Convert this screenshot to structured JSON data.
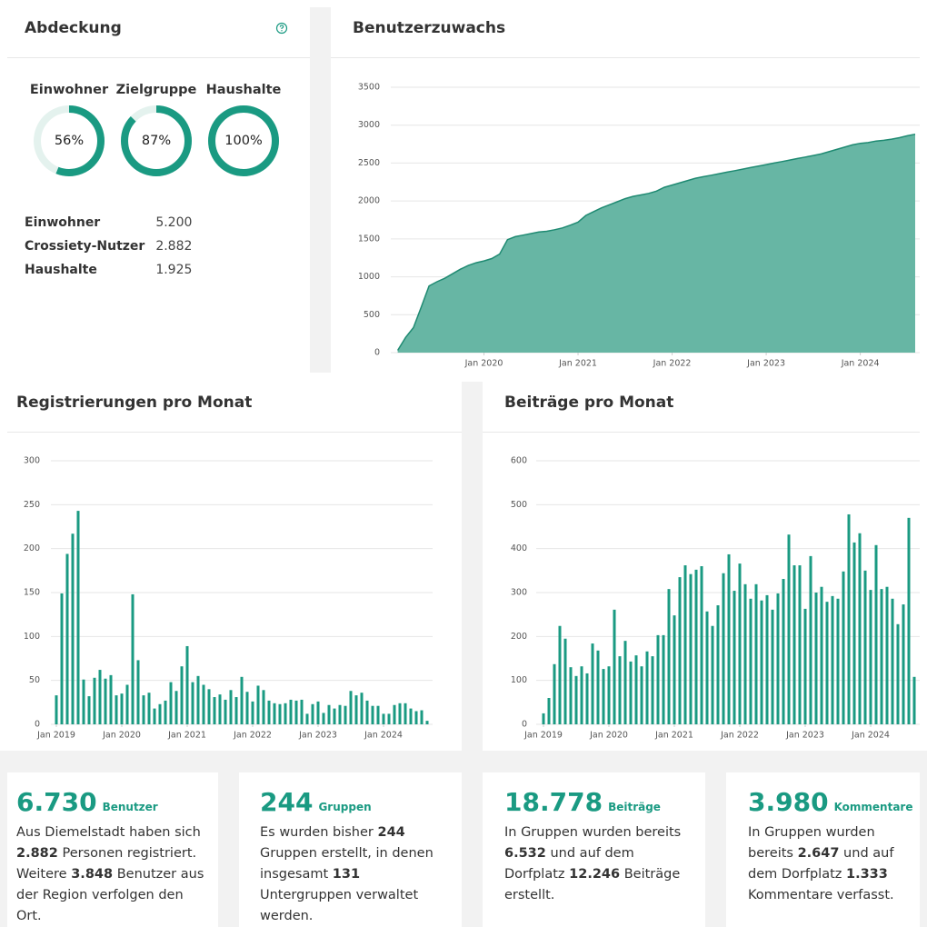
{
  "chart_data": [
    {
      "type": "donut",
      "title": "Abdeckung",
      "categories": [
        "Einwohner",
        "Zielgruppe",
        "Haushalte"
      ],
      "values": [
        56,
        87,
        100
      ],
      "value_labels": [
        "56%",
        "87%",
        "100%"
      ],
      "color": "#1a9a82",
      "track_color": "#e4f2ee"
    },
    {
      "type": "area",
      "title": "Benutzerzuwachs",
      "color": "#1f8a72",
      "fill": "#67b6a4",
      "x": [
        "2019-02",
        "2019-03",
        "2019-04",
        "2019-05",
        "2019-06",
        "2019-07",
        "2019-08",
        "2019-09",
        "2019-10",
        "2019-11",
        "2019-12",
        "2020-01",
        "2020-02",
        "2020-03",
        "2020-04",
        "2020-05",
        "2020-06",
        "2020-07",
        "2020-08",
        "2020-09",
        "2020-10",
        "2020-11",
        "2020-12",
        "2021-01",
        "2021-02",
        "2021-03",
        "2021-04",
        "2021-05",
        "2021-06",
        "2021-07",
        "2021-08",
        "2021-09",
        "2021-10",
        "2021-11",
        "2021-12",
        "2022-01",
        "2022-02",
        "2022-03",
        "2022-04",
        "2022-05",
        "2022-06",
        "2022-07",
        "2022-08",
        "2022-09",
        "2022-10",
        "2022-11",
        "2022-12",
        "2023-01",
        "2023-02",
        "2023-03",
        "2023-04",
        "2023-05",
        "2023-06",
        "2023-07",
        "2023-08",
        "2023-09",
        "2023-10",
        "2023-11",
        "2023-12",
        "2024-01",
        "2024-02",
        "2024-03",
        "2024-04",
        "2024-05",
        "2024-06",
        "2024-07",
        "2024-08"
      ],
      "values": [
        30,
        200,
        330,
        600,
        880,
        935,
        980,
        1040,
        1100,
        1150,
        1185,
        1210,
        1240,
        1300,
        1490,
        1530,
        1550,
        1570,
        1590,
        1600,
        1620,
        1645,
        1680,
        1720,
        1810,
        1860,
        1910,
        1950,
        1990,
        2030,
        2060,
        2080,
        2100,
        2130,
        2180,
        2210,
        2240,
        2270,
        2300,
        2320,
        2340,
        2360,
        2380,
        2400,
        2420,
        2440,
        2460,
        2480,
        2500,
        2520,
        2540,
        2560,
        2580,
        2600,
        2620,
        2650,
        2680,
        2710,
        2740,
        2760,
        2770,
        2790,
        2800,
        2815,
        2835,
        2860,
        2880
      ],
      "xlim": [
        "2019-01",
        "2024-08"
      ],
      "xticks": [
        {
          "value": "2020-01",
          "label": "Jan 2020"
        },
        {
          "value": "2021-01",
          "label": "Jan 2021"
        },
        {
          "value": "2022-01",
          "label": "Jan 2022"
        },
        {
          "value": "2023-01",
          "label": "Jan 2023"
        },
        {
          "value": "2024-01",
          "label": "Jan 2024"
        }
      ],
      "ylim": [
        0,
        3500
      ],
      "yticks": [
        0,
        500,
        1000,
        1500,
        2000,
        2500,
        3000,
        3500
      ],
      "grid": true
    },
    {
      "type": "bar",
      "title": "Registrierungen pro Monat",
      "color": "#1a9a82",
      "x": [
        "2019-01",
        "2019-02",
        "2019-03",
        "2019-04",
        "2019-05",
        "2019-06",
        "2019-07",
        "2019-08",
        "2019-09",
        "2019-10",
        "2019-11",
        "2019-12",
        "2020-01",
        "2020-02",
        "2020-03",
        "2020-04",
        "2020-05",
        "2020-06",
        "2020-07",
        "2020-08",
        "2020-09",
        "2020-10",
        "2020-11",
        "2020-12",
        "2021-01",
        "2021-02",
        "2021-03",
        "2021-04",
        "2021-05",
        "2021-06",
        "2021-07",
        "2021-08",
        "2021-09",
        "2021-10",
        "2021-11",
        "2021-12",
        "2022-01",
        "2022-02",
        "2022-03",
        "2022-04",
        "2022-05",
        "2022-06",
        "2022-07",
        "2022-08",
        "2022-09",
        "2022-10",
        "2022-11",
        "2022-12",
        "2023-01",
        "2023-02",
        "2023-03",
        "2023-04",
        "2023-05",
        "2023-06",
        "2023-07",
        "2023-08",
        "2023-09",
        "2023-10",
        "2023-11",
        "2023-12",
        "2024-01",
        "2024-02",
        "2024-03",
        "2024-04",
        "2024-05",
        "2024-06",
        "2024-07",
        "2024-08",
        "2024-09"
      ],
      "values": [
        33,
        149,
        194,
        217,
        243,
        51,
        32,
        53,
        62,
        52,
        56,
        33,
        35,
        45,
        148,
        73,
        33,
        36,
        18,
        23,
        27,
        48,
        38,
        66,
        89,
        48,
        55,
        45,
        40,
        31,
        34,
        28,
        39,
        31,
        54,
        37,
        26,
        44,
        39,
        27,
        24,
        23,
        24,
        28,
        27,
        28,
        12,
        23,
        26,
        13,
        22,
        18,
        22,
        21,
        38,
        33,
        36,
        27,
        21,
        21,
        12,
        12,
        22,
        24,
        24,
        18,
        15,
        16,
        4
      ],
      "xlim": [
        "2019-01",
        "2024-09"
      ],
      "xticks": [
        {
          "value": "2019-01",
          "label": "Jan 2019"
        },
        {
          "value": "2020-01",
          "label": "Jan 2020"
        },
        {
          "value": "2021-01",
          "label": "Jan 2021"
        },
        {
          "value": "2022-01",
          "label": "Jan 2022"
        },
        {
          "value": "2023-01",
          "label": "Jan 2023"
        },
        {
          "value": "2024-01",
          "label": "Jan 2024"
        }
      ],
      "ylim": [
        0,
        300
      ],
      "yticks": [
        0,
        50,
        100,
        150,
        200,
        250,
        300
      ],
      "grid": true
    },
    {
      "type": "bar",
      "title": "Beiträge pro Monat",
      "color": "#1a9a82",
      "x": [
        "2019-01",
        "2019-02",
        "2019-03",
        "2019-04",
        "2019-05",
        "2019-06",
        "2019-07",
        "2019-08",
        "2019-09",
        "2019-10",
        "2019-11",
        "2019-12",
        "2020-01",
        "2020-02",
        "2020-03",
        "2020-04",
        "2020-05",
        "2020-06",
        "2020-07",
        "2020-08",
        "2020-09",
        "2020-10",
        "2020-11",
        "2020-12",
        "2021-01",
        "2021-02",
        "2021-03",
        "2021-04",
        "2021-05",
        "2021-06",
        "2021-07",
        "2021-08",
        "2021-09",
        "2021-10",
        "2021-11",
        "2021-12",
        "2022-01",
        "2022-02",
        "2022-03",
        "2022-04",
        "2022-05",
        "2022-06",
        "2022-07",
        "2022-08",
        "2022-09",
        "2022-10",
        "2022-11",
        "2022-12",
        "2023-01",
        "2023-02",
        "2023-03",
        "2023-04",
        "2023-05",
        "2023-06",
        "2023-07",
        "2023-08",
        "2023-09",
        "2023-10",
        "2023-11",
        "2023-12",
        "2024-01",
        "2024-02",
        "2024-03",
        "2024-04",
        "2024-05",
        "2024-06",
        "2024-07",
        "2024-08",
        "2024-09"
      ],
      "values": [
        25,
        60,
        137,
        224,
        195,
        130,
        110,
        132,
        116,
        184,
        168,
        126,
        132,
        261,
        155,
        190,
        143,
        157,
        132,
        166,
        155,
        203,
        203,
        308,
        248,
        335,
        362,
        342,
        352,
        360,
        257,
        224,
        271,
        344,
        387,
        304,
        366,
        319,
        286,
        319,
        282,
        294,
        261,
        298,
        331,
        432,
        362,
        362,
        263,
        383,
        300,
        313,
        279,
        292,
        286,
        348,
        478,
        414,
        435,
        350,
        306,
        408,
        308,
        313,
        286,
        228,
        273,
        470,
        108
      ],
      "xlim": [
        "2019-01",
        "2024-09"
      ],
      "xticks": [
        {
          "value": "2019-01",
          "label": "Jan 2019"
        },
        {
          "value": "2020-01",
          "label": "Jan 2020"
        },
        {
          "value": "2021-01",
          "label": "Jan 2021"
        },
        {
          "value": "2022-01",
          "label": "Jan 2022"
        },
        {
          "value": "2023-01",
          "label": "Jan 2023"
        },
        {
          "value": "2024-01",
          "label": "Jan 2024"
        }
      ],
      "ylim": [
        0,
        600
      ],
      "yticks": [
        0,
        100,
        200,
        300,
        400,
        500,
        600
      ],
      "grid": true
    }
  ],
  "coverage_table": {
    "rows": [
      [
        "Einwohner",
        "5.200"
      ],
      [
        "Crossiety-Nutzer",
        "2.882"
      ],
      [
        "Haushalte",
        "1.925"
      ]
    ]
  },
  "cards": [
    {
      "value": "6.730",
      "unit": "Benutzer",
      "text": [
        "Aus Diemelstadt haben sich ",
        "2.882",
        " Personen registriert. Weitere ",
        "3.848",
        " Benutzer aus der Region verfolgen den Ort."
      ]
    },
    {
      "value": "244",
      "unit": "Gruppen",
      "text": [
        "Es wurden bisher ",
        "244",
        " Gruppen erstellt, in denen insgesamt ",
        "131",
        " Untergruppen verwaltet werden."
      ]
    },
    {
      "value": "18.778",
      "unit": "Beiträge",
      "text": [
        "In Gruppen wurden bereits ",
        "6.532",
        " und auf dem Dorfplatz ",
        "12.246",
        " Beiträge erstellt."
      ]
    },
    {
      "value": "3.980",
      "unit": "Kommentare",
      "text": [
        "In Gruppen wurden bereits ",
        "2.647",
        " und auf dem Dorfplatz ",
        "1.333",
        " Kommentare verfasst."
      ]
    }
  ]
}
